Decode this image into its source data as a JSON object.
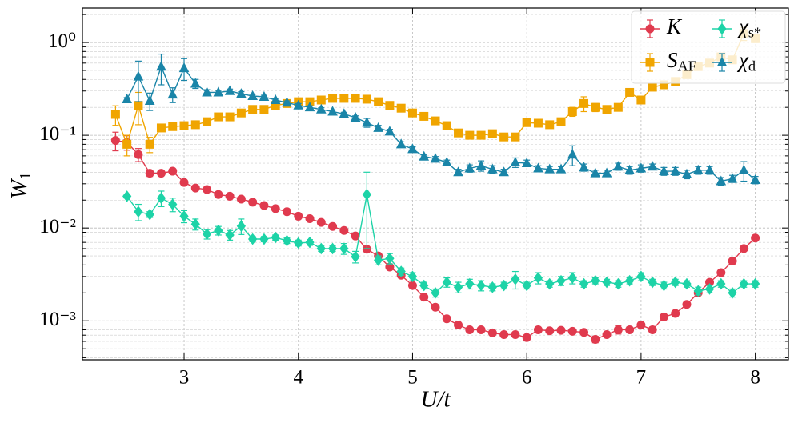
{
  "chart_data": {
    "type": "errorbar-line",
    "xlabel": "U/t",
    "ylabel": "W_1",
    "xlim": [
      2.11,
      8.29
    ],
    "ylim": [
      0.00038,
      2.35
    ],
    "yscale": "log",
    "grid": true,
    "legend_loc": "upper right",
    "xticks": [
      3,
      4,
      5,
      6,
      7,
      8
    ],
    "yticks": [
      {
        "value": 0.001,
        "label": "10⁻³"
      },
      {
        "value": 0.01,
        "label": "10⁻²"
      },
      {
        "value": 0.1,
        "label": "10⁻¹"
      },
      {
        "value": 1,
        "label": "10⁰"
      }
    ],
    "yminorticks": [
      0.0004,
      0.0005,
      0.0006,
      0.0007,
      0.0008,
      0.0009,
      0.002,
      0.003,
      0.004,
      0.005,
      0.006,
      0.007,
      0.008,
      0.009,
      0.02,
      0.03,
      0.04,
      0.05,
      0.06,
      0.07,
      0.08,
      0.09,
      0.2,
      0.3,
      0.4,
      0.5,
      0.6,
      0.7,
      0.8,
      0.9,
      2
    ],
    "series": [
      {
        "name": "K",
        "color": "#e03a4e",
        "marker": "circle",
        "x": [
          2.4,
          2.5,
          2.6,
          2.7,
          2.8,
          2.9,
          3.0,
          3.1,
          3.2,
          3.3,
          3.4,
          3.5,
          3.6,
          3.7,
          3.8,
          3.9,
          4.0,
          4.1,
          4.2,
          4.3,
          4.4,
          4.5,
          4.6,
          4.7,
          4.8,
          4.9,
          5.0,
          5.1,
          5.2,
          5.3,
          5.4,
          5.5,
          5.6,
          5.7,
          5.8,
          5.9,
          6.0,
          6.1,
          6.2,
          6.3,
          6.4,
          6.5,
          6.6,
          6.7,
          6.8,
          6.9,
          7.0,
          7.1,
          7.2,
          7.3,
          7.4,
          7.5,
          7.6,
          7.7,
          7.8,
          7.9,
          8.0
        ],
        "values": [
          0.088,
          0.084,
          0.062,
          0.039,
          0.039,
          0.041,
          0.031,
          0.027,
          0.026,
          0.023,
          0.022,
          0.0205,
          0.019,
          0.0175,
          0.0162,
          0.015,
          0.0134,
          0.0126,
          0.0115,
          0.0104,
          0.0094,
          0.0082,
          0.0059,
          0.005,
          0.0038,
          0.0031,
          0.0024,
          0.0018,
          0.0014,
          0.00105,
          0.0009,
          0.0008,
          0.0008,
          0.00074,
          0.00071,
          0.00071,
          0.00066,
          0.0008,
          0.00078,
          0.00079,
          0.00077,
          0.00075,
          0.00063,
          0.00071,
          0.0008,
          0.0008,
          0.0009,
          0.0008,
          0.0011,
          0.0012,
          0.0015,
          0.002,
          0.0026,
          0.0033,
          0.0044,
          0.006,
          0.0078
        ],
        "errors": [
          0.02,
          0.015,
          0.01,
          0.003,
          0.002,
          0.002,
          0.0012,
          0.001,
          0.001,
          0.0009,
          0.0008,
          0.0008,
          0.0007,
          0.0007,
          0.0006,
          0.0006,
          0.0005,
          0.0005,
          0.0004,
          0.0004,
          0.0004,
          0.0003,
          0.0003,
          0.0003,
          0.0002,
          0.0002,
          0.0001,
          0.0001,
          8e-05,
          6e-05,
          5e-05,
          5e-05,
          5e-05,
          4e-05,
          4e-05,
          4e-05,
          4e-05,
          5e-05,
          4e-05,
          4e-05,
          4e-05,
          4e-05,
          5e-05,
          4e-05,
          8e-05,
          6e-05,
          6e-05,
          6e-05,
          5e-05,
          6e-05,
          8e-05,
          0.0001,
          0.0001,
          0.0001,
          0.0002,
          0.0002,
          0.0003
        ]
      },
      {
        "name": "S_AF",
        "color": "#f0a500",
        "marker": "square",
        "x": [
          2.4,
          2.5,
          2.6,
          2.7,
          2.8,
          2.9,
          3.0,
          3.1,
          3.2,
          3.3,
          3.4,
          3.5,
          3.6,
          3.7,
          3.8,
          3.9,
          4.0,
          4.1,
          4.2,
          4.3,
          4.4,
          4.5,
          4.6,
          4.7,
          4.8,
          4.9,
          5.0,
          5.1,
          5.2,
          5.3,
          5.4,
          5.5,
          5.6,
          5.7,
          5.8,
          5.9,
          6.0,
          6.1,
          6.2,
          6.3,
          6.4,
          6.5,
          6.6,
          6.7,
          6.8,
          6.9,
          7.0,
          7.1,
          7.2,
          7.3,
          7.4,
          7.5,
          7.6,
          7.7,
          7.8,
          7.9,
          8.0
        ],
        "values": [
          0.168,
          0.08,
          0.21,
          0.08,
          0.12,
          0.124,
          0.127,
          0.13,
          0.14,
          0.158,
          0.158,
          0.174,
          0.19,
          0.19,
          0.21,
          0.22,
          0.23,
          0.23,
          0.24,
          0.25,
          0.25,
          0.25,
          0.245,
          0.23,
          0.21,
          0.196,
          0.174,
          0.16,
          0.143,
          0.127,
          0.106,
          0.1,
          0.1,
          0.104,
          0.096,
          0.096,
          0.137,
          0.135,
          0.13,
          0.14,
          0.18,
          0.22,
          0.2,
          0.19,
          0.2,
          0.29,
          0.24,
          0.33,
          0.35,
          0.38,
          0.45,
          0.55,
          0.6,
          0.7,
          0.65,
          1.25,
          1.1
        ],
        "errors": [
          0.04,
          0.02,
          0.08,
          0.015,
          0.01,
          0.008,
          0.008,
          0.008,
          0.008,
          0.008,
          0.008,
          0.008,
          0.008,
          0.008,
          0.008,
          0.008,
          0.008,
          0.008,
          0.008,
          0.008,
          0.008,
          0.008,
          0.008,
          0.008,
          0.008,
          0.006,
          0.006,
          0.006,
          0.005,
          0.005,
          0.005,
          0.004,
          0.004,
          0.006,
          0.004,
          0.004,
          0.008,
          0.006,
          0.005,
          0.005,
          0.02,
          0.04,
          0.02,
          0.01,
          0.015,
          0.02,
          0.02,
          0.02,
          0.02,
          0.03,
          0.03,
          0.04,
          0.04,
          0.05,
          0.05,
          0.2,
          0.1
        ]
      },
      {
        "name": "χ_s*",
        "color": "#1dd3a7",
        "marker": "diamond",
        "x": [
          2.5,
          2.6,
          2.7,
          2.8,
          2.9,
          3.0,
          3.1,
          3.2,
          3.3,
          3.4,
          3.5,
          3.6,
          3.7,
          3.8,
          3.9,
          4.0,
          4.1,
          4.2,
          4.3,
          4.4,
          4.5,
          4.6,
          4.7,
          4.8,
          4.9,
          5.0,
          5.1,
          5.2,
          5.3,
          5.4,
          5.5,
          5.6,
          5.7,
          5.8,
          5.9,
          6.0,
          6.1,
          6.2,
          6.3,
          6.4,
          6.5,
          6.6,
          6.7,
          6.8,
          6.9,
          7.0,
          7.1,
          7.2,
          7.3,
          7.4,
          7.5,
          7.6,
          7.7,
          7.8,
          7.9,
          8.0
        ],
        "values": [
          0.022,
          0.015,
          0.014,
          0.021,
          0.018,
          0.0134,
          0.011,
          0.0086,
          0.0094,
          0.0084,
          0.0105,
          0.0076,
          0.0076,
          0.0079,
          0.0073,
          0.0069,
          0.007,
          0.006,
          0.006,
          0.006,
          0.0049,
          0.023,
          0.0045,
          0.0047,
          0.0034,
          0.003,
          0.0024,
          0.002,
          0.0026,
          0.0023,
          0.0025,
          0.0024,
          0.0023,
          0.0024,
          0.0028,
          0.0024,
          0.0029,
          0.0025,
          0.0027,
          0.0029,
          0.0025,
          0.0027,
          0.0026,
          0.0025,
          0.0027,
          0.003,
          0.0026,
          0.0024,
          0.0026,
          0.0025,
          0.0021,
          0.0022,
          0.0025,
          0.002,
          0.0025,
          0.0025
        ],
        "errors": [
          0.001,
          0.003,
          0.001,
          0.004,
          0.003,
          0.002,
          0.0015,
          0.001,
          0.001,
          0.001,
          0.002,
          0.0005,
          0.0005,
          0.0005,
          0.0005,
          0.0005,
          0.0005,
          0.0004,
          0.0004,
          0.0008,
          0.0007,
          0.017,
          0.0005,
          0.0006,
          0.0003,
          0.0003,
          0.0002,
          0.0002,
          0.0003,
          0.0003,
          0.0003,
          0.0003,
          0.0002,
          0.0002,
          0.0006,
          0.0002,
          0.0004,
          0.0002,
          0.0003,
          0.0004,
          0.0002,
          0.0002,
          0.0002,
          0.0002,
          0.0002,
          0.0003,
          0.0002,
          0.0002,
          0.0002,
          0.0002,
          0.0002,
          0.0002,
          0.0002,
          0.0002,
          0.0002,
          0.0002
        ]
      },
      {
        "name": "χ_d",
        "color": "#1a85a8",
        "marker": "triangle",
        "x": [
          2.5,
          2.6,
          2.7,
          2.8,
          2.9,
          3.0,
          3.1,
          3.2,
          3.3,
          3.4,
          3.5,
          3.6,
          3.7,
          3.8,
          3.9,
          4.0,
          4.1,
          4.2,
          4.3,
          4.4,
          4.5,
          4.6,
          4.7,
          4.8,
          4.9,
          5.0,
          5.1,
          5.2,
          5.3,
          5.4,
          5.5,
          5.6,
          5.7,
          5.8,
          5.9,
          6.0,
          6.1,
          6.2,
          6.3,
          6.4,
          6.5,
          6.6,
          6.7,
          6.8,
          6.9,
          7.0,
          7.1,
          7.2,
          7.3,
          7.4,
          7.5,
          7.6,
          7.7,
          7.8,
          7.9,
          8.0
        ],
        "values": [
          0.245,
          0.43,
          0.235,
          0.55,
          0.275,
          0.53,
          0.36,
          0.29,
          0.29,
          0.3,
          0.28,
          0.265,
          0.26,
          0.24,
          0.225,
          0.21,
          0.2,
          0.19,
          0.18,
          0.17,
          0.155,
          0.137,
          0.12,
          0.11,
          0.08,
          0.071,
          0.059,
          0.056,
          0.051,
          0.04,
          0.044,
          0.047,
          0.043,
          0.04,
          0.051,
          0.05,
          0.044,
          0.043,
          0.043,
          0.062,
          0.045,
          0.039,
          0.039,
          0.046,
          0.042,
          0.044,
          0.046,
          0.041,
          0.041,
          0.038,
          0.042,
          0.042,
          0.032,
          0.034,
          0.042,
          0.033
        ],
        "errors": [
          0.01,
          0.2,
          0.05,
          0.2,
          0.05,
          0.14,
          0.04,
          0.02,
          0.015,
          0.015,
          0.015,
          0.012,
          0.01,
          0.01,
          0.01,
          0.01,
          0.008,
          0.008,
          0.007,
          0.007,
          0.007,
          0.015,
          0.008,
          0.006,
          0.005,
          0.004,
          0.003,
          0.003,
          0.003,
          0.003,
          0.004,
          0.006,
          0.004,
          0.003,
          0.006,
          0.004,
          0.003,
          0.003,
          0.003,
          0.015,
          0.004,
          0.003,
          0.003,
          0.004,
          0.004,
          0.004,
          0.003,
          0.004,
          0.004,
          0.004,
          0.004,
          0.004,
          0.003,
          0.003,
          0.01,
          0.003
        ]
      }
    ]
  }
}
